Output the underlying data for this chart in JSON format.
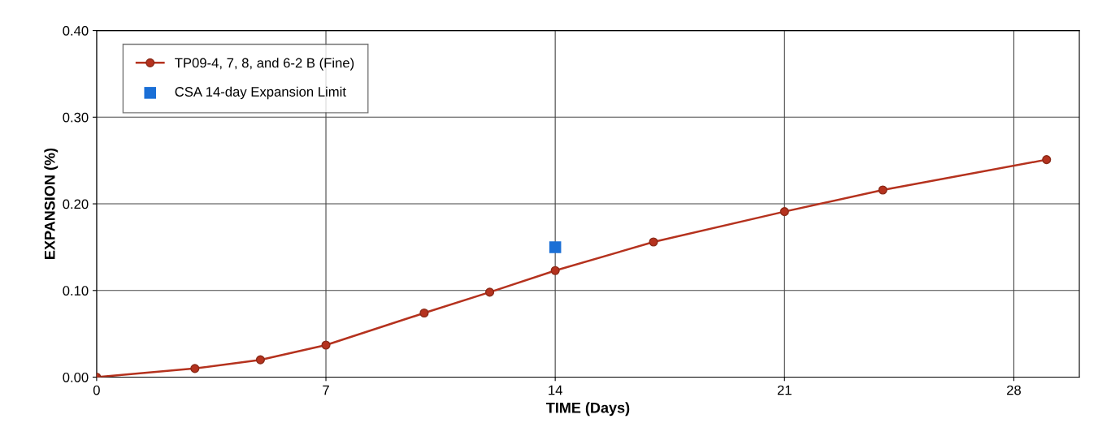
{
  "chart_data": {
    "type": "line",
    "xlabel": "TIME (Days)",
    "ylabel": "EXPANSION (%)",
    "xlim": [
      0,
      30
    ],
    "xticks": [
      0,
      7,
      14,
      21,
      28
    ],
    "ylim": [
      0,
      0.4
    ],
    "yticks": [
      {
        "value": 0,
        "label": "0.00"
      },
      {
        "value": 0.1,
        "label": "0.10"
      },
      {
        "value": 0.2,
        "label": "0.20"
      },
      {
        "value": 0.3,
        "label": "0.30"
      },
      {
        "value": 0.4,
        "label": "0.40"
      }
    ],
    "grid": true,
    "legend": "top left",
    "series": [
      {
        "name": "TP09-4, 7, 8, and 6-2 B (Fine)",
        "type": "line",
        "marker": "circle",
        "color": "#b5321e",
        "x": [
          0,
          3,
          5,
          7,
          10,
          12,
          14,
          17,
          21,
          24,
          29
        ],
        "values": [
          0,
          0.01,
          0.02,
          0.037,
          0.074,
          0.098,
          0.123,
          0.156,
          0.191,
          0.216,
          0.251
        ]
      },
      {
        "name": "CSA 14-day Expansion Limit",
        "type": "scatter",
        "marker": "square",
        "color": "#1a6fd6",
        "x": [
          14
        ],
        "values": [
          0.15
        ]
      }
    ]
  }
}
